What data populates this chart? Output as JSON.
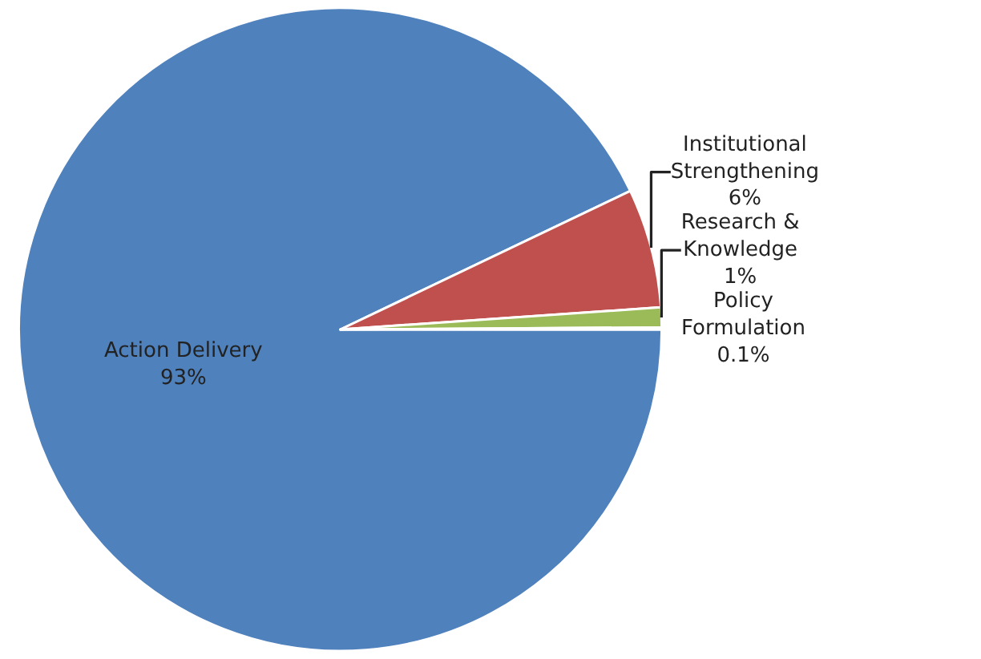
{
  "chart_data": {
    "type": "pie",
    "categories": [
      "Action Delivery",
      "Institutional Strengthening",
      "Research & Knowledge",
      "Policy Formulation"
    ],
    "values": [
      93,
      6,
      1,
      0.1
    ],
    "value_labels": [
      "93%",
      "6%",
      "1%",
      "0.1%"
    ],
    "colors": [
      "#4f81bd",
      "#c0504d",
      "#9bbb59",
      "#8064a2"
    ],
    "legend": false
  }
}
